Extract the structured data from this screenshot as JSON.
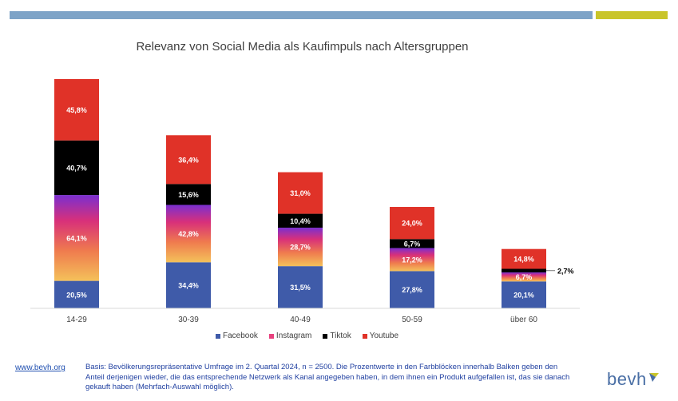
{
  "title": "Relevanz von Social Media als Kaufimpuls nach Altersgruppen",
  "colors": {
    "facebook": "#3f5ba9",
    "instagram": "#e8417e",
    "tiktok": "#000000",
    "youtube": "#e03228",
    "top_bar_blue": "#7da3c7",
    "top_bar_yellow": "#c9c52a"
  },
  "legend": {
    "facebook": "Facebook",
    "instagram": "Instagram",
    "tiktok": "Tiktok",
    "youtube": "Youtube"
  },
  "chart_data": {
    "type": "bar",
    "stacked": true,
    "categories": [
      "14-29",
      "30-39",
      "40-49",
      "50-59",
      "über 60"
    ],
    "series": [
      {
        "name": "Facebook",
        "values": [
          20.5,
          34.4,
          31.5,
          27.8,
          20.1
        ],
        "labels": [
          "20,5%",
          "34,4%",
          "31,5%",
          "27,8%",
          "20,1%"
        ]
      },
      {
        "name": "Instagram",
        "values": [
          64.1,
          42.8,
          28.7,
          17.2,
          6.7
        ],
        "labels": [
          "64,1%",
          "42,8%",
          "28,7%",
          "17,2%",
          "6,7%"
        ]
      },
      {
        "name": "Tiktok",
        "values": [
          40.7,
          15.6,
          10.4,
          6.7,
          2.7
        ],
        "labels": [
          "40,7%",
          "15,6%",
          "10,4%",
          "6,7%",
          "2,7%"
        ]
      },
      {
        "name": "Youtube",
        "values": [
          45.8,
          36.4,
          31.0,
          24.0,
          14.8
        ],
        "labels": [
          "45,8%",
          "36,4%",
          "31,0%",
          "24,0%",
          "14,8%"
        ]
      }
    ],
    "legend_position": "bottom",
    "grid": false
  },
  "footer": {
    "link": "www.bevh.org",
    "note": "Basis: Bevölkerungsrepräsentative Umfrage im 2. Quartal 2024, n = 2500. Die Prozentwerte in den Farbblöcken innerhalb Balken geben den Anteil derjenigen wieder, die das entsprechende Netzwerk als Kanal angegeben haben, in dem ihnen ein Produkt aufgefallen ist, das sie danach gekauft haben (Mehrfach-Auswahl möglich)."
  },
  "logo": {
    "text": "bevh"
  }
}
